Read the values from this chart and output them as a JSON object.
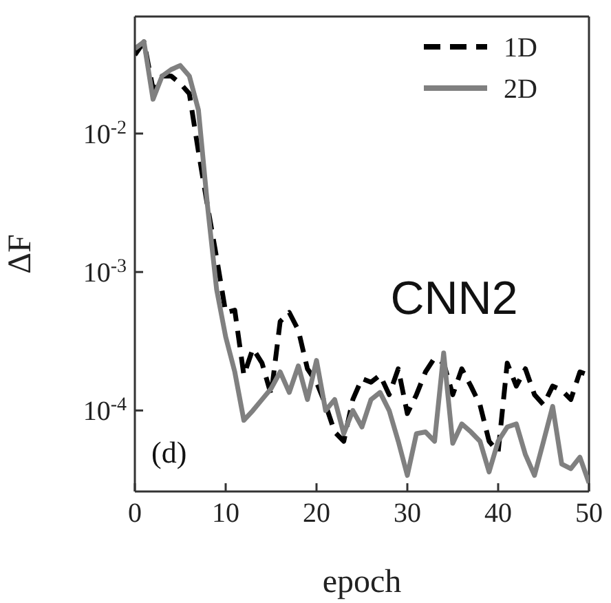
{
  "chart_data": {
    "type": "line",
    "xlabel": "epoch",
    "ylabel": "ΔF",
    "log": "y",
    "legend": "top right",
    "grid": false,
    "marker": "none",
    "annotations": [
      "(d)",
      "CNN2"
    ],
    "x": [
      0,
      1,
      2,
      3,
      4,
      5,
      6,
      7,
      8,
      9,
      10,
      11,
      12,
      13,
      14,
      15,
      16,
      17,
      18,
      19,
      20,
      21,
      22,
      23,
      24,
      25,
      26,
      27,
      28,
      29,
      30,
      31,
      32,
      33,
      34,
      35,
      36,
      37,
      38,
      39,
      40,
      41,
      42,
      43,
      44,
      45,
      46,
      47,
      48,
      49,
      50
    ],
    "xlim": [
      0,
      50
    ],
    "xticks": [
      0,
      10,
      20,
      30,
      40,
      50
    ],
    "ylim": [
      2.6e-05,
      0.07
    ],
    "yticks": [
      {
        "value": 0.0001,
        "label": "10$^{-4}$"
      },
      {
        "value": 0.001,
        "label": "10$^{-3}$"
      },
      {
        "value": 0.01,
        "label": "10$^{-2}$"
      }
    ],
    "series": [
      {
        "name": "1D",
        "color": "#000000",
        "line_style": "dashed",
        "values": [
          0.037,
          0.046,
          0.021,
          0.026,
          0.026,
          0.023,
          0.0194,
          0.0074,
          0.003,
          0.00127,
          0.00051,
          0.00053,
          0.00018,
          0.00028,
          0.00022,
          0.00013,
          0.00044,
          0.00051,
          0.00038,
          0.0002,
          0.00016,
          0.00011,
          7e-05,
          6e-05,
          0.00012,
          0.00017,
          0.00016,
          0.00018,
          0.00013,
          0.0002,
          9.5e-05,
          0.00013,
          0.00019,
          0.00024,
          0.00022,
          0.00013,
          0.0002,
          0.00015,
          0.00011,
          6e-05,
          5e-05,
          0.00022,
          0.00015,
          0.0002,
          0.00013,
          0.00011,
          0.00015,
          0.00014,
          0.00012,
          0.00019,
          0.00018
        ]
      },
      {
        "name": "2D",
        "color": "#808080",
        "line_style": "solid",
        "values": [
          0.041,
          0.046,
          0.0177,
          0.026,
          0.029,
          0.031,
          0.026,
          0.0148,
          0.003,
          0.00075,
          0.00034,
          0.00019,
          8.5e-05,
          0.0001,
          0.00012,
          0.000144,
          0.00019,
          0.000135,
          0.00021,
          0.00012,
          0.00023,
          0.0001,
          0.00012,
          6.8e-05,
          0.0001,
          7.6e-05,
          0.00012,
          0.000135,
          0.0001,
          6e-05,
          3.4e-05,
          6.8e-05,
          7e-05,
          6e-05,
          0.00026,
          5.8e-05,
          8e-05,
          7e-05,
          6e-05,
          3.6e-05,
          6e-05,
          7.6e-05,
          8e-05,
          4.8e-05,
          3.4e-05,
          6e-05,
          0.000107,
          4.1e-05,
          3.8e-05,
          4.6e-05,
          3e-05
        ]
      }
    ]
  }
}
